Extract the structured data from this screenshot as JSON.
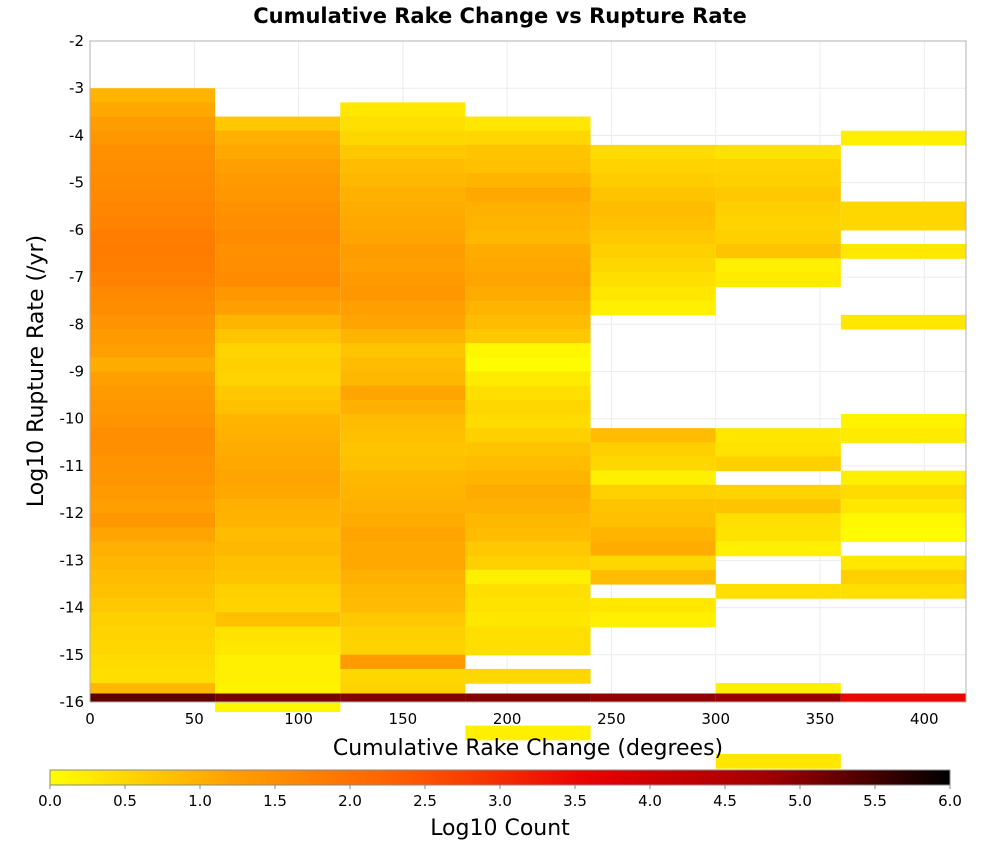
{
  "chart_data": {
    "type": "heatmap",
    "title": "Cumulative Rake Change vs Rupture Rate",
    "xlabel": "Cumulative Rake Change (degrees)",
    "ylabel": "Log10 Rupture Rate (/yr)",
    "xlim": [
      0,
      420
    ],
    "ylim": [
      -16,
      -2
    ],
    "x_ticks": [
      "0",
      "50",
      "100",
      "150",
      "200",
      "250",
      "300",
      "350",
      "400"
    ],
    "y_ticks": [
      "-2",
      "-3",
      "-4",
      "-5",
      "-6",
      "-7",
      "-8",
      "-9",
      "-10",
      "-11",
      "-12",
      "-13",
      "-14",
      "-15",
      "-16"
    ],
    "grid": true,
    "x_bin_width": 60,
    "y_bin_height": 0.3,
    "colorbar": {
      "label": "Log10 Count",
      "range": [
        0,
        6
      ],
      "ticks": [
        "0.0",
        "0.5",
        "1.0",
        "1.5",
        "2.0",
        "2.5",
        "3.0",
        "3.5",
        "4.0",
        "4.5",
        "5.0",
        "5.5",
        "6.0"
      ],
      "colors": [
        "#ffff00",
        "#ffa000",
        "#ff5a00",
        "#e80000",
        "#a00000",
        "#000000"
      ]
    },
    "columns": [
      {
        "x_start": 0,
        "y_top": -3.0,
        "values": [
          0.95,
          1.1,
          1.25,
          1.35,
          1.45,
          1.5,
          1.55,
          1.6,
          1.65,
          1.72,
          1.8,
          1.82,
          1.78,
          1.72,
          1.6,
          1.52,
          1.4,
          1.3,
          1.2,
          1.05,
          1.2,
          1.3,
          1.35,
          1.4,
          1.5,
          1.45,
          1.42,
          1.38,
          1.3,
          1.2,
          1.35,
          1.15,
          1.0,
          0.92,
          0.85,
          0.78,
          0.7,
          0.6,
          0.55,
          0.5,
          0.45,
          0.4,
          0.9
        ]
      },
      {
        "x_start": 60,
        "y_top": -3.6,
        "values": [
          0.7,
          1.0,
          1.1,
          1.2,
          1.3,
          1.35,
          1.45,
          1.5,
          1.55,
          1.45,
          1.5,
          1.55,
          1.35,
          1.2,
          0.95,
          0.75,
          0.55,
          0.6,
          0.55,
          0.7,
          0.8,
          0.95,
          1.0,
          1.05,
          1.1,
          1.15,
          1.1,
          1.0,
          0.95,
          0.85,
          0.9,
          0.8,
          0.75,
          0.6,
          0.55,
          0.8,
          0.35,
          0.3,
          0.2,
          0.2,
          0.15,
          0.1
        ]
      },
      {
        "x_start": 120,
        "y_top": -3.3,
        "values": [
          0.3,
          0.4,
          0.5,
          0.7,
          0.85,
          0.9,
          1.0,
          1.05,
          1.1,
          1.15,
          1.25,
          1.2,
          1.3,
          1.35,
          1.2,
          1.15,
          0.95,
          0.75,
          0.85,
          0.9,
          1.15,
          1.0,
          0.85,
          0.8,
          0.75,
          0.8,
          0.9,
          0.95,
          1.0,
          1.05,
          1.15,
          1.1,
          1.1,
          1.0,
          0.9,
          0.85,
          0.7,
          0.6,
          0.55,
          1.3,
          0.5,
          0.55
        ]
      },
      {
        "x_start": 180,
        "y_top": -3.6,
        "values": [
          0.3,
          0.5,
          0.75,
          0.8,
          0.95,
          1.1,
          1.0,
          0.95,
          0.9,
          1.05,
          1.1,
          1.15,
          1.05,
          0.95,
          0.85,
          0.7,
          0.1,
          0.05,
          0.25,
          0.4,
          0.5,
          0.45,
          0.6,
          0.75,
          0.85,
          0.95,
          1.05,
          1.0,
          0.9,
          0.85,
          0.7,
          0.6,
          0.2,
          0.4,
          0.35,
          0.3,
          0.4,
          0.4,
          -1,
          0.5,
          -1,
          -1,
          -1,
          0.2
        ]
      },
      {
        "x_start": 240,
        "y_top": -4.2,
        "values": [
          0.45,
          0.55,
          0.65,
          0.75,
          0.85,
          0.8,
          0.7,
          0.6,
          0.5,
          0.4,
          0.3,
          0.2,
          -1,
          -1,
          -1,
          -1,
          -1,
          -1,
          -1,
          -1,
          0.85,
          0.6,
          0.5,
          0.2,
          0.6,
          0.75,
          0.8,
          0.95,
          1.05,
          0.5,
          0.85,
          -1,
          0.3,
          0.2
        ]
      },
      {
        "x_start": 300,
        "y_top": -4.2,
        "values": [
          0.35,
          0.55,
          0.6,
          0.7,
          0.6,
          0.55,
          0.6,
          0.75,
          0.2,
          0.25,
          -1,
          -1,
          -1,
          -1,
          -1,
          -1,
          -1,
          -1,
          -1,
          -1,
          0.3,
          0.35,
          0.6,
          -1,
          0.55,
          0.75,
          0.4,
          0.35,
          0.2,
          -1,
          -1,
          0.4,
          -1,
          -1,
          -1,
          -1,
          -1,
          -1,
          0.2,
          -1,
          -1,
          -1,
          -1,
          0.3
        ]
      },
      {
        "x_start": 360,
        "y_top": -3.9,
        "values": [
          0.2,
          -1,
          -1,
          -1,
          -1,
          0.5,
          0.5,
          -1,
          0.3,
          -1,
          -1,
          -1,
          -1,
          0.3,
          -1,
          -1,
          -1,
          -1,
          -1,
          -1,
          0.15,
          0.25,
          -1,
          -1,
          0.2,
          0.45,
          0.3,
          0.1,
          0.05,
          -1,
          0.3,
          0.6,
          0.4
        ]
      }
    ],
    "bottom_row": {
      "y": -16,
      "values": [
        5.3,
        5.1,
        5.0,
        5.0,
        4.9,
        4.85,
        3.5
      ]
    }
  }
}
